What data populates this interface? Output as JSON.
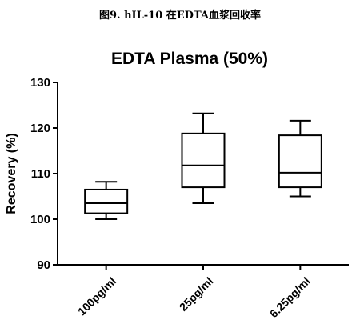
{
  "caption": "图9.  hIL-10 在EDTA血浆回收率",
  "chart_data": {
    "type": "boxplot",
    "title": "EDTA Plasma (50%)",
    "xlabel": "",
    "ylabel": "Recovery (%)",
    "ylim": [
      90,
      130
    ],
    "yticks": [
      90,
      100,
      110,
      120,
      130
    ],
    "grid": false,
    "categories": [
      "100pg/ml",
      "25pg/ml",
      "6.25pg/ml"
    ],
    "boxes": [
      {
        "min": 100.0,
        "q1": 101.3,
        "median": 103.5,
        "q3": 106.5,
        "max": 108.2
      },
      {
        "min": 103.5,
        "q1": 107.0,
        "median": 111.8,
        "q3": 118.8,
        "max": 123.2
      },
      {
        "min": 105.0,
        "q1": 107.0,
        "median": 110.2,
        "q3": 118.4,
        "max": 121.6
      }
    ]
  }
}
